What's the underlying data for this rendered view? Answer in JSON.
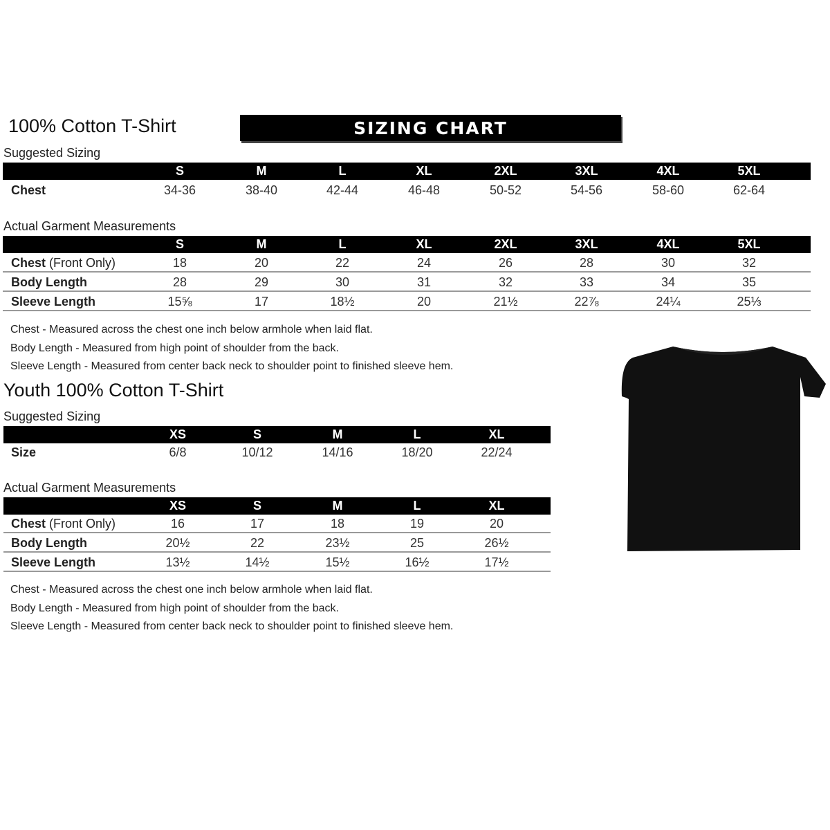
{
  "adult": {
    "title": "100% Cotton T-Shirt",
    "banner": "SIZING CHART",
    "suggested_label": "Suggested Sizing",
    "sizes": [
      "S",
      "M",
      "L",
      "XL",
      "2XL",
      "3XL",
      "4XL",
      "5XL"
    ],
    "suggested_rows": [
      {
        "label": "Chest",
        "label_extra": "",
        "values": [
          "34-36",
          "38-40",
          "42-44",
          "46-48",
          "50-52",
          "54-56",
          "58-60",
          "62-64"
        ]
      }
    ],
    "actual_label": "Actual Garment Measurements",
    "actual_rows": [
      {
        "label": "Chest",
        "label_extra": " (Front Only)",
        "values": [
          "18",
          "20",
          "22",
          "24",
          "26",
          "28",
          "30",
          "32"
        ]
      },
      {
        "label": "Body Length",
        "label_extra": "",
        "values": [
          "28",
          "29",
          "30",
          "31",
          "32",
          "33",
          "34",
          "35"
        ]
      },
      {
        "label": "Sleeve Length",
        "label_extra": "",
        "values": [
          "15⅝",
          "17",
          "18½",
          "20",
          "21½",
          "22⅞",
          "24¼",
          "25⅓"
        ]
      }
    ],
    "notes": [
      "Chest - Measured across the chest one inch below armhole when laid flat.",
      "Body Length - Measured from high point of shoulder from the back.",
      "Sleeve Length - Measured from center back neck to shoulder point to finished sleeve hem."
    ]
  },
  "youth": {
    "title": "Youth 100% Cotton T-Shirt",
    "suggested_label": "Suggested Sizing",
    "sizes": [
      "XS",
      "S",
      "M",
      "L",
      "XL"
    ],
    "suggested_rows": [
      {
        "label": "Size",
        "label_extra": "",
        "values": [
          "6/8",
          "10/12",
          "14/16",
          "18/20",
          "22/24"
        ]
      }
    ],
    "actual_label": "Actual Garment Measurements",
    "actual_rows": [
      {
        "label": "Chest",
        "label_extra": " (Front Only)",
        "values": [
          "16",
          "17",
          "18",
          "19",
          "20"
        ]
      },
      {
        "label": "Body Length",
        "label_extra": "",
        "values": [
          "20½",
          "22",
          "23½",
          "25",
          "26½"
        ]
      },
      {
        "label": "Sleeve Length",
        "label_extra": "",
        "values": [
          "13½",
          "14½",
          "15½",
          "16½",
          "17½"
        ]
      }
    ],
    "notes": [
      "Chest - Measured across the chest one inch below armhole when laid flat.",
      "Body Length - Measured from high point of shoulder from the back.",
      "Sleeve Length - Measured from center back neck to shoulder point to finished sleeve hem."
    ]
  },
  "image": {
    "icon": "black-tshirt-image",
    "color": "#111111"
  }
}
